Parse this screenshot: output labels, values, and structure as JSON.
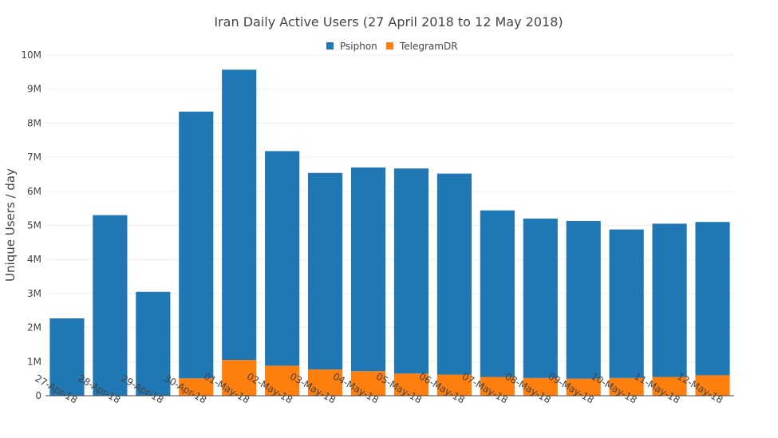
{
  "chart_data": {
    "type": "bar",
    "stacked": true,
    "title": "Iran Daily Active Users (27 April 2018 to 12 May 2018)",
    "xlabel": "",
    "ylabel": "Unique Users / day",
    "ylim": [
      0,
      10000000
    ],
    "yticks": [
      0,
      1000000,
      2000000,
      3000000,
      4000000,
      5000000,
      6000000,
      7000000,
      8000000,
      9000000,
      10000000
    ],
    "ytick_labels": [
      "0",
      "1M",
      "2M",
      "3M",
      "4M",
      "5M",
      "6M",
      "7M",
      "8M",
      "9M",
      "10M"
    ],
    "grid": true,
    "legend_position": "top-center",
    "categories": [
      "27-Apr-18",
      "28-Apr-18",
      "29-Apr-18",
      "30-Apr-18",
      "01-May-18",
      "02-May-18",
      "03-May-18",
      "04-May-18",
      "05-May-18",
      "06-May-18",
      "07-May-18",
      "08-May-18",
      "09-May-18",
      "10-May-18",
      "11-May-18",
      "12-May-18"
    ],
    "series": [
      {
        "name": "TelegramDR",
        "color": "#ff7f0e",
        "values": [
          0,
          0,
          0,
          510000,
          1050000,
          880000,
          770000,
          720000,
          650000,
          620000,
          550000,
          520000,
          500000,
          520000,
          550000,
          600000
        ]
      },
      {
        "name": "Psiphon",
        "color": "#1f77b4",
        "values": [
          2270000,
          5300000,
          3050000,
          7830000,
          8520000,
          6300000,
          5770000,
          5980000,
          6020000,
          5900000,
          4890000,
          4680000,
          4630000,
          4360000,
          4500000,
          4500000
        ]
      }
    ],
    "legend_order": [
      "Psiphon",
      "TelegramDR"
    ]
  }
}
